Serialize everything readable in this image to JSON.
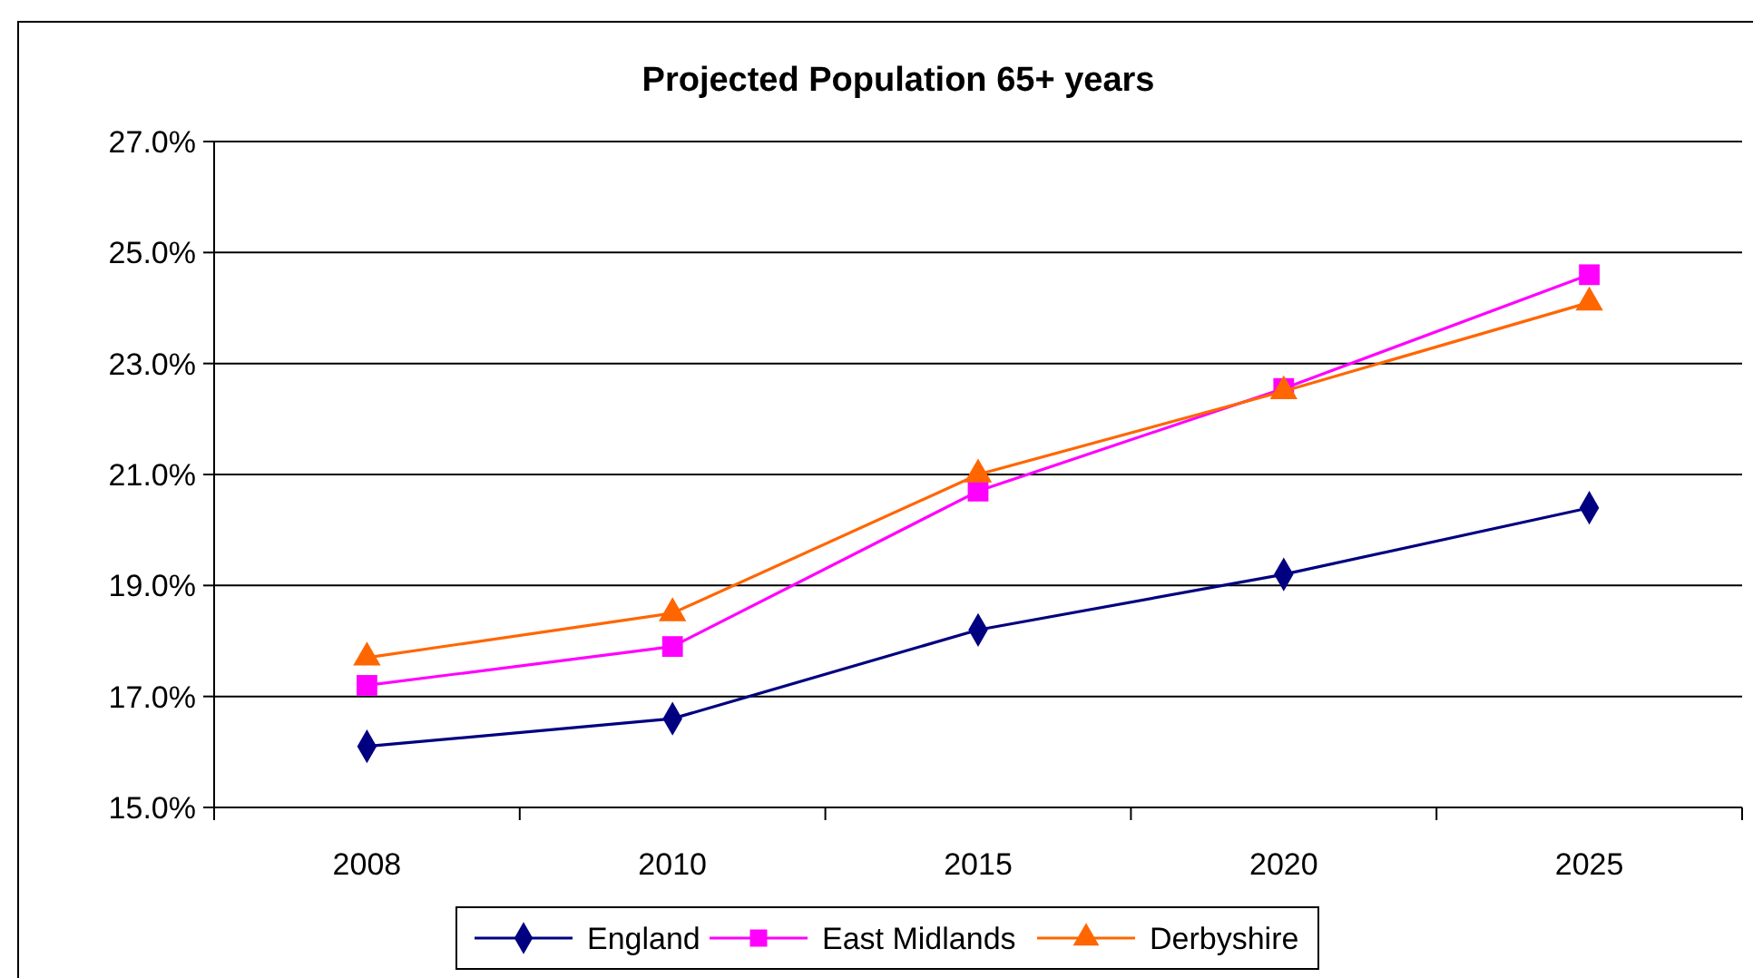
{
  "chart_data": {
    "type": "line",
    "title": "Projected Population 65+ years",
    "categories": [
      "2008",
      "2010",
      "2015",
      "2020",
      "2025"
    ],
    "series": [
      {
        "name": "England",
        "color": "#000080",
        "marker": "diamond",
        "values": [
          16.1,
          16.6,
          18.2,
          19.2,
          20.4
        ]
      },
      {
        "name": "East Midlands",
        "color": "#ff00ff",
        "marker": "square",
        "values": [
          17.2,
          17.9,
          20.7,
          22.55,
          24.6
        ]
      },
      {
        "name": "Derbyshire",
        "color": "#ff6600",
        "marker": "triangle",
        "values": [
          17.7,
          18.5,
          21.0,
          22.5,
          24.1
        ]
      }
    ],
    "ylim": [
      15,
      27
    ],
    "yticks": [
      {
        "value": 15,
        "label": "15.0%"
      },
      {
        "value": 17,
        "label": "17.0%"
      },
      {
        "value": 19,
        "label": "19.0%"
      },
      {
        "value": 21,
        "label": "21.0%"
      },
      {
        "value": 23,
        "label": "23.0%"
      },
      {
        "value": 25,
        "label": "25.0%"
      },
      {
        "value": 27,
        "label": "27.0%"
      }
    ],
    "grid": "y",
    "legend": "bottom",
    "line_style": "solid"
  }
}
